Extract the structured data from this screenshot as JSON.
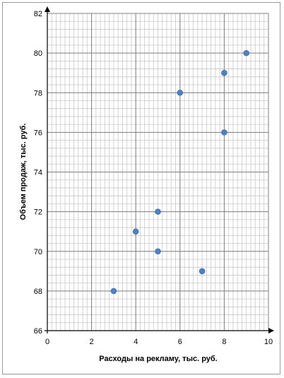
{
  "chart_data": {
    "type": "scatter",
    "title": "",
    "xlabel": "Расходы на рекламу, тыс. руб.",
    "ylabel": "Объем продаж, тыс. руб.",
    "xlim": [
      0,
      10
    ],
    "ylim": [
      66,
      82
    ],
    "x_ticks": [
      "0",
      "2",
      "4",
      "6",
      "8",
      "10"
    ],
    "y_ticks": [
      "66",
      "68",
      "70",
      "72",
      "74",
      "76",
      "78",
      "80",
      "82"
    ],
    "grid": true,
    "legend": "none",
    "marker_color": "#4f81bd",
    "points": [
      {
        "x": 3,
        "y": 68
      },
      {
        "x": 4,
        "y": 71
      },
      {
        "x": 5,
        "y": 70
      },
      {
        "x": 5,
        "y": 72
      },
      {
        "x": 6,
        "y": 78
      },
      {
        "x": 7,
        "y": 69
      },
      {
        "x": 8,
        "y": 76
      },
      {
        "x": 8,
        "y": 79
      },
      {
        "x": 9,
        "y": 80
      }
    ]
  }
}
